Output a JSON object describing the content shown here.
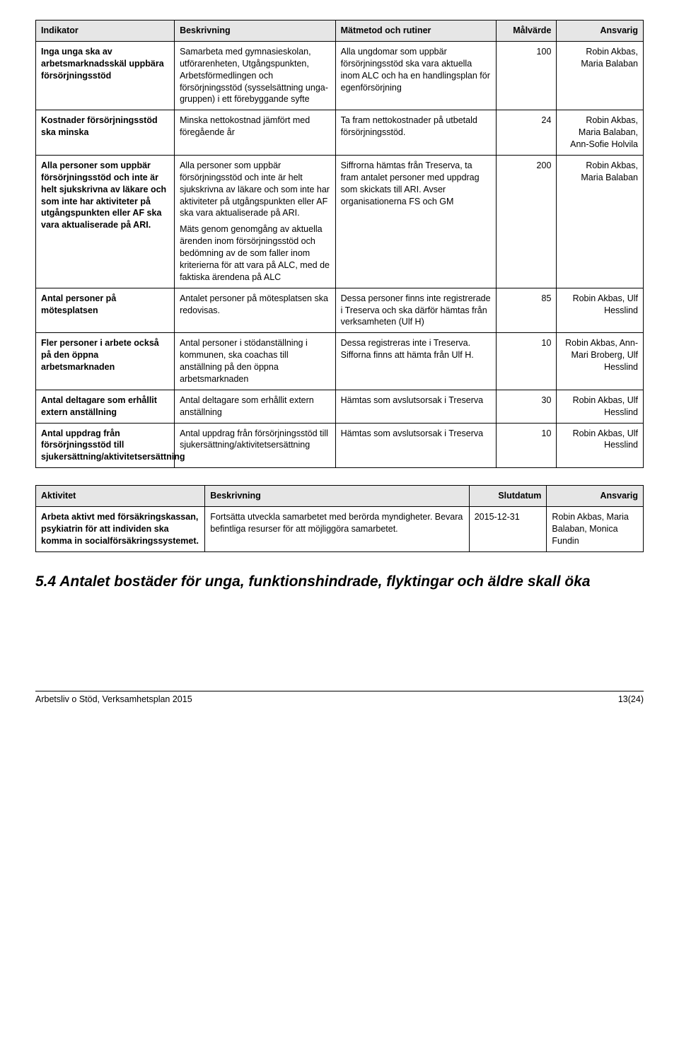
{
  "indicatorTable": {
    "headers": [
      "Indikator",
      "Beskrivning",
      "Mätmetod och rutiner",
      "Målvärde",
      "Ansvarig"
    ],
    "colWidths": [
      "168px",
      "195px",
      "195px",
      "73px",
      "105px"
    ],
    "rows": [
      {
        "indicator": "Inga unga ska av arbetsmarknadsskäl uppbära försörjningsstöd",
        "desc": "Samarbeta med gymnasieskolan, utförarenheten, Utgångspunkten, Arbetsförmedlingen och försörjningsstöd (sysselsättning unga-gruppen) i ett förebyggande syfte",
        "method": "Alla ungdomar som uppbär försörjningsstöd ska vara aktuella inom ALC och ha en handlingsplan för egenförsörjning",
        "target": "100",
        "responsible": "Robin Akbas, Maria Balaban"
      },
      {
        "indicator": "Kostnader försörjningsstöd ska minska",
        "desc": "Minska nettokostnad jämfört med föregående år",
        "method": "Ta fram nettokostnader på utbetald försörjningsstöd.",
        "target": "24",
        "responsible": "Robin Akbas, Maria Balaban, Ann-Sofie Holvila"
      },
      {
        "indicator": "Alla personer som uppbär försörjningsstöd och inte är helt sjukskrivna av läkare och som inte har aktiviteter på utgångspunkten eller AF ska vara aktualiserade på ARI.",
        "desc": "Alla personer som uppbär försörjningsstöd och inte är helt sjukskrivna av läkare och som inte har aktiviteter på utgångspunkten eller AF ska vara aktualiserade på ARI.",
        "desc2": "Mäts genom genomgång av aktuella ärenden inom försörjningsstöd och bedömning av de som faller inom kriterierna för att vara på ALC, med de faktiska ärendena på ALC",
        "method": "Siffrorna hämtas från Treserva, ta fram antalet personer med uppdrag som skickats till ARI. Avser organisationerna FS och GM",
        "target": "200",
        "responsible": "Robin Akbas, Maria Balaban"
      },
      {
        "indicator": "Antal personer på mötesplatsen",
        "desc": "Antalet personer på mötesplatsen ska redovisas.",
        "method": "Dessa personer finns inte registrerade i Treserva och ska därför hämtas från verksamheten (Ulf H)",
        "target": "85",
        "responsible": "Robin Akbas, Ulf Hesslind"
      },
      {
        "indicator": "Fler personer i arbete också på den öppna arbetsmarknaden",
        "desc": "Antal personer i stödanställning i kommunen, ska coachas till anställning på den öppna arbetsmarknaden",
        "method": "Dessa registreras inte i Treserva. Sifforna finns att hämta från Ulf H.",
        "target": "10",
        "responsible": "Robin Akbas, Ann-Mari Broberg, Ulf Hesslind"
      },
      {
        "indicator": "Antal deltagare som erhållit extern anställning",
        "desc": "Antal deltagare som erhållit extern anställning",
        "method": "Hämtas som avslutsorsak i Treserva",
        "target": "30",
        "responsible": "Robin Akbas, Ulf Hesslind"
      },
      {
        "indicator": "Antal uppdrag från försörjningsstöd till sjukersättning/aktivitetsersättning",
        "desc": "Antal uppdrag från försörjningsstöd till sjukersättning/aktivitetsersättning",
        "method": "Hämtas som avslutsorsak i Treserva",
        "target": "10",
        "responsible": "Robin Akbas, Ulf Hesslind"
      }
    ]
  },
  "activityTable": {
    "headers": [
      "Aktivitet",
      "Beskrivning",
      "Slutdatum",
      "Ansvarig"
    ],
    "colWidths": [
      "205px",
      "320px",
      "94px",
      "117px"
    ],
    "rows": [
      {
        "activity": "Arbeta aktivt med försäkringskassan, psykiatrin för att individen ska komma in socialförsäkringssystemet.",
        "desc": "Fortsätta utveckla samarbetet med berörda myndigheter. Bevara befintliga resurser för att möjliggöra samarbetet.",
        "deadline": "2015-12-31",
        "responsible": "Robin Akbas, Maria Balaban, Monica Fundin"
      }
    ]
  },
  "sectionHeading": "5.4 Antalet bostäder för unga, funktionshindrade, flyktingar och äldre skall öka",
  "footer": {
    "left": "Arbetsliv o Stöd, Verksamhetsplan 2015",
    "right": "13(24)"
  }
}
